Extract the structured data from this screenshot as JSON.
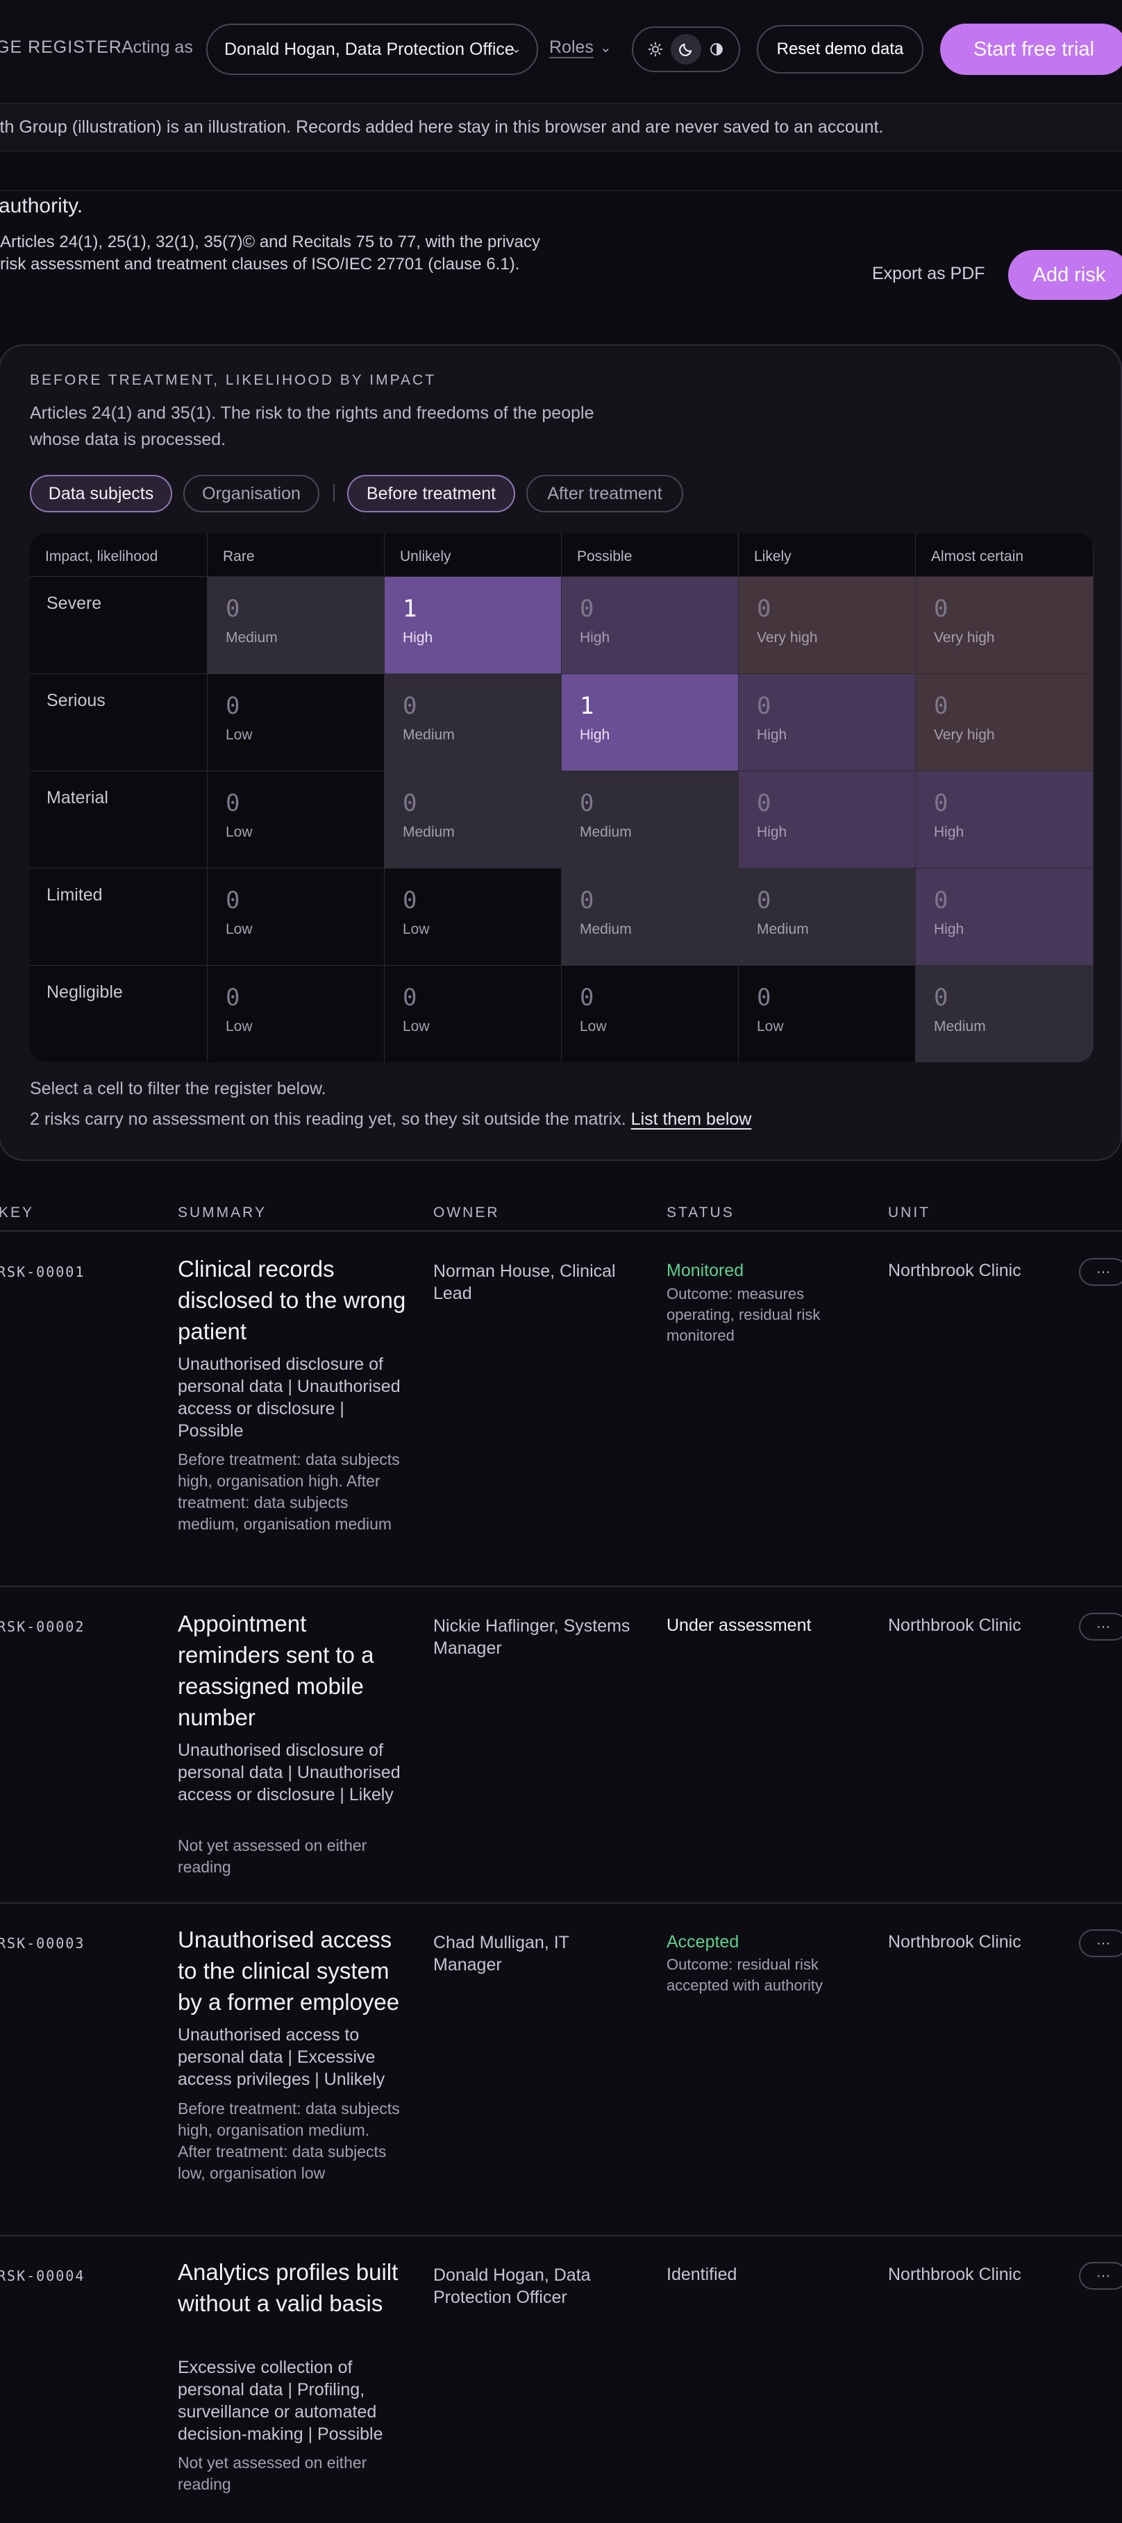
{
  "topbar": {
    "brand": "GE REGISTER",
    "acting_label": "Acting as",
    "acting_value": "Donald Hogan, Data Protection Office",
    "roles_label": "Roles",
    "theme_icons": [
      "sun-icon",
      "moon-icon",
      "contrast-icon"
    ],
    "reset_label": "Reset demo data",
    "trial_label": "Start free trial"
  },
  "notice": "lth Group (illustration) is an illustration. Records added here stay in this browser and are never saved to an account.",
  "intro": {
    "line1": "authority.",
    "line2": "Articles 24(1), 25(1), 32(1), 35(7)© and Recitals 75 to 77, with the privacy risk assessment and treatment clauses of ISO/IEC 27701 (clause 6.1).",
    "export_label": "Export as PDF",
    "add_label": "Add risk"
  },
  "matrix": {
    "eyebrow": "BEFORE TREATMENT, LIKELIHOOD BY IMPACT",
    "description": "Articles 24(1) and 35(1). The risk to the rights and freedoms of the people whose data is processed.",
    "chips": {
      "data_subjects": "Data subjects",
      "organisation": "Organisation",
      "before": "Before treatment",
      "after": "After treatment"
    },
    "corner_label": "Impact, likelihood",
    "columns": [
      "Rare",
      "Unlikely",
      "Possible",
      "Likely",
      "Almost certain"
    ],
    "rows": [
      {
        "label": "Severe",
        "cells": [
          {
            "count": "0",
            "level": "Medium"
          },
          {
            "count": "1",
            "level": "High"
          },
          {
            "count": "0",
            "level": "High"
          },
          {
            "count": "0",
            "level": "Very high"
          },
          {
            "count": "0",
            "level": "Very high"
          }
        ]
      },
      {
        "label": "Serious",
        "cells": [
          {
            "count": "0",
            "level": "Low"
          },
          {
            "count": "0",
            "level": "Medium"
          },
          {
            "count": "1",
            "level": "High"
          },
          {
            "count": "0",
            "level": "High"
          },
          {
            "count": "0",
            "level": "Very high"
          }
        ]
      },
      {
        "label": "Material",
        "cells": [
          {
            "count": "0",
            "level": "Low"
          },
          {
            "count": "0",
            "level": "Medium"
          },
          {
            "count": "0",
            "level": "Medium"
          },
          {
            "count": "0",
            "level": "High"
          },
          {
            "count": "0",
            "level": "High"
          }
        ]
      },
      {
        "label": "Limited",
        "cells": [
          {
            "count": "0",
            "level": "Low"
          },
          {
            "count": "0",
            "level": "Low"
          },
          {
            "count": "0",
            "level": "Medium"
          },
          {
            "count": "0",
            "level": "Medium"
          },
          {
            "count": "0",
            "level": "High"
          }
        ]
      },
      {
        "label": "Negligible",
        "cells": [
          {
            "count": "0",
            "level": "Low"
          },
          {
            "count": "0",
            "level": "Low"
          },
          {
            "count": "0",
            "level": "Low"
          },
          {
            "count": "0",
            "level": "Low"
          },
          {
            "count": "0",
            "level": "Medium"
          }
        ]
      }
    ],
    "level_colors": {
      "Low": "#0b0a0e",
      "Medium": "#302c38",
      "High": "#47385a",
      "Very high": "#45363d",
      "Hit": "#6a4f94"
    },
    "foot1": "Select a cell to filter the register below.",
    "foot2": "2 risks carry no assessment on this reading yet, so they sit outside the matrix.",
    "foot2_link": "List them below"
  },
  "table": {
    "headers": {
      "key": "KEY",
      "summary": "SUMMARY",
      "owner": "OWNER",
      "status": "STATUS",
      "unit": "UNIT"
    },
    "rows": [
      {
        "key": "RSK-00001",
        "title": "Clinical records disclosed to the wrong patient",
        "categories": "Unauthorised disclosure of personal data | Unauthorised access or disclosure | Possible",
        "assessment": "Before treatment: data subjects high, organisation high. After treatment: data subjects medium, organisation medium",
        "owner": "Norman House, Clinical Lead",
        "status": "Monitored",
        "status_color": "#5fd08a",
        "status_note": "Outcome: measures operating, residual risk monitored",
        "unit": "Northbrook Clinic"
      },
      {
        "key": "RSK-00002",
        "title": "Appointment reminders sent to a reassigned mobile number",
        "categories": "Unauthorised disclosure of personal data | Unauthorised access or disclosure | Likely",
        "assessment": "Not yet assessed on either reading",
        "owner": "Nickie Haflinger, Systems Manager",
        "status": "Under assessment",
        "status_color": "#f3f0f7",
        "status_note": "",
        "unit": "Northbrook Clinic"
      },
      {
        "key": "RSK-00003",
        "title": "Unauthorised access to the clinical system by a former employee",
        "categories": "Unauthorised access to personal data | Excessive access privileges | Unlikely",
        "assessment": "Before treatment: data subjects high, organisation medium. After treatment: data subjects low, organisation low",
        "owner": "Chad Mulligan, IT Manager",
        "status": "Accepted",
        "status_color": "#5fd08a",
        "status_note": "Outcome: residual risk accepted with authority",
        "unit": "Northbrook Clinic"
      },
      {
        "key": "RSK-00004",
        "title": "Analytics profiles built without a valid basis",
        "categories": "Excessive collection of personal data | Profiling, surveillance or automated decision-making | Possible",
        "assessment": "Not yet assessed on either reading",
        "owner": "Donald Hogan, Data Protection Officer",
        "status": "Identified",
        "status_color": "#c9c3d2",
        "status_note": "",
        "unit": "Northbrook Clinic"
      }
    ]
  }
}
